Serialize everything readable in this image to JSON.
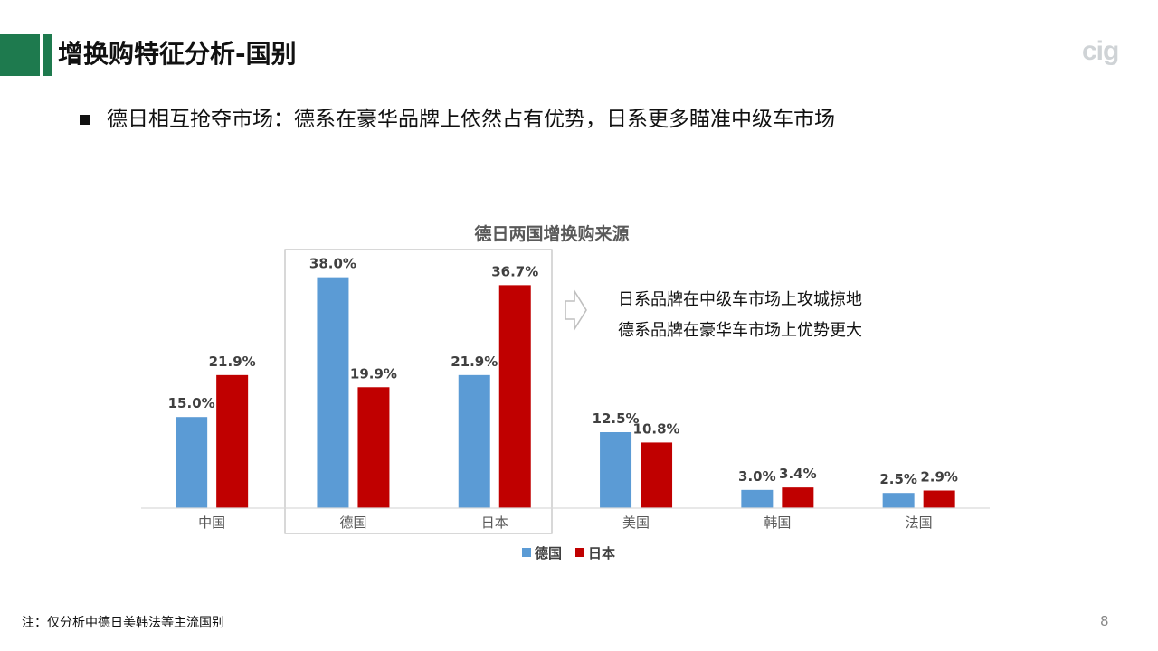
{
  "header": {
    "title": "增换购特征分析-国别",
    "logo_text": "cig",
    "accent_color": "#1e7a4e"
  },
  "bullet": {
    "icon": "square-bullet-icon",
    "text": "德日相互抢夺市场：德系在豪华品牌上依然占有优势，日系更多瞄准中级车市场"
  },
  "chart_data": {
    "type": "bar",
    "title": "德日两国增换购来源",
    "categories": [
      "中国",
      "德国",
      "日本",
      "美国",
      "韩国",
      "法国"
    ],
    "series": [
      {
        "name": "德国",
        "color": "#5b9bd5",
        "values": [
          15.0,
          38.0,
          21.9,
          12.5,
          3.0,
          2.5
        ],
        "labels": [
          "15.0%",
          "38.0%",
          "21.9%",
          "12.5%",
          "3.0%",
          "2.5%"
        ]
      },
      {
        "name": "日本",
        "color": "#c00000",
        "values": [
          21.9,
          19.9,
          36.7,
          10.8,
          3.4,
          2.9
        ],
        "labels": [
          "21.9%",
          "19.9%",
          "36.7%",
          "10.8%",
          "3.4%",
          "2.9%"
        ]
      }
    ],
    "ylim": [
      0,
      40
    ],
    "unit": "%",
    "grid": false,
    "legend_position": "bottom-center",
    "highlight_categories": [
      "德国",
      "日本"
    ],
    "annotation": {
      "icon": "right-arrow-outline-icon",
      "lines": [
        "日系品牌在中级车市场上攻城掠地",
        "德系品牌在豪华车市场上优势更大"
      ]
    }
  },
  "footer": {
    "note": "注：仅分析中德日美韩法等主流国别",
    "page_number": "8"
  }
}
